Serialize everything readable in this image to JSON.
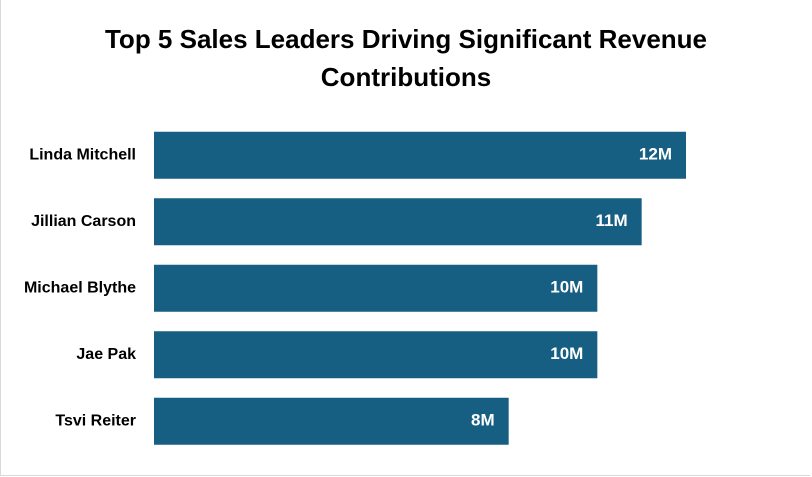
{
  "chart_data": {
    "type": "bar",
    "orientation": "horizontal",
    "title": "Top 5 Sales Leaders Driving Significant Revenue Contributions",
    "categories": [
      "Linda Mitchell",
      "Jillian Carson",
      "Michael Blythe",
      "Jae Pak",
      "Tsvi Reiter"
    ],
    "values": [
      12,
      11,
      10,
      10,
      8
    ],
    "value_labels": [
      "12M",
      "11M",
      "10M",
      "10M",
      "8M"
    ],
    "color": "#175f82",
    "xlim": [
      0,
      12
    ]
  }
}
